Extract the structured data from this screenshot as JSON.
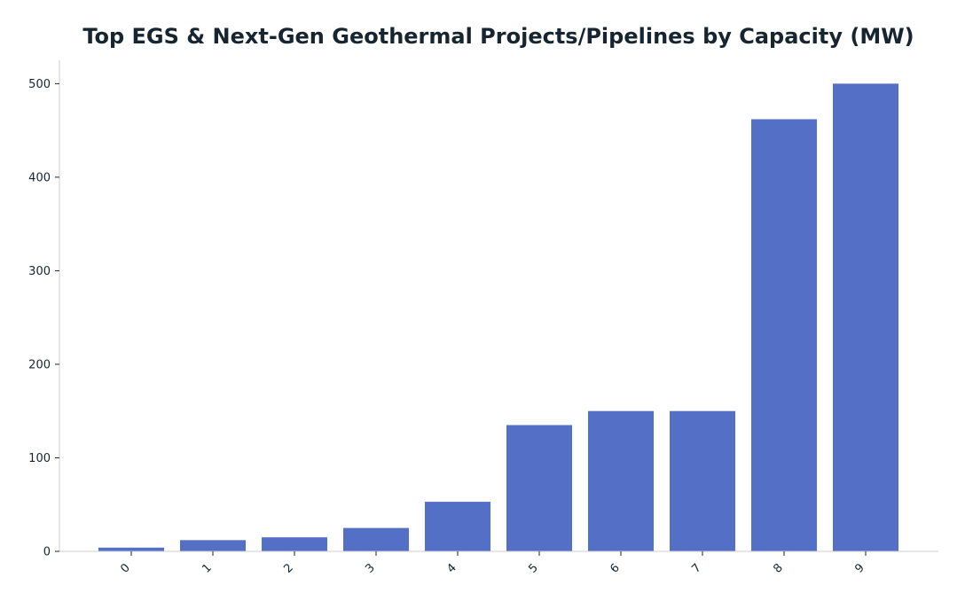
{
  "chart_data": {
    "type": "bar",
    "title": "Top EGS & Next-Gen Geothermal Projects/Pipelines by Capacity (MW)",
    "xlabel": "",
    "ylabel": "",
    "categories": [
      "0",
      "1",
      "2",
      "3",
      "4",
      "5",
      "6",
      "7",
      "8",
      "9"
    ],
    "values": [
      4,
      12,
      15,
      25,
      53,
      135,
      150,
      150,
      462,
      500
    ],
    "ylim": [
      0,
      525
    ],
    "yticks": [
      0,
      100,
      200,
      300,
      400,
      500
    ],
    "ytick_labels": [
      "0",
      "100",
      "200",
      "300",
      "400",
      "500"
    ],
    "grid": false,
    "legend": "none",
    "bar_color": "#5470c6",
    "text_color": "#16252f",
    "axis_color": "#cccccc"
  }
}
